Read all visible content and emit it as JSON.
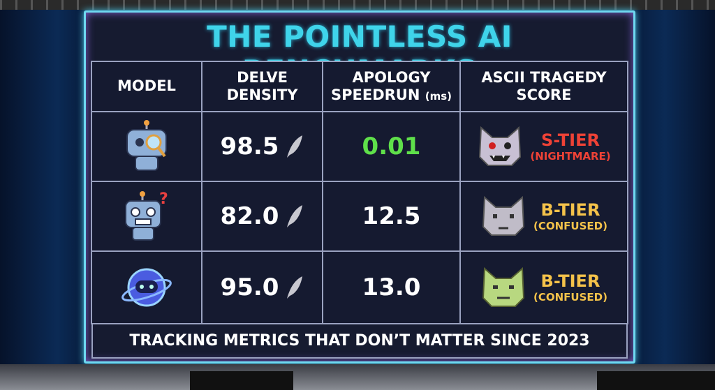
{
  "header": {
    "title": "THE POINTLESS AI BENCHMARKS"
  },
  "table": {
    "columns": [
      {
        "text": "MODEL"
      },
      {
        "text": "DELVE DENSITY"
      },
      {
        "text": "APOLOGY SPEEDRUN",
        "unit": "(ms)"
      },
      {
        "text": "ASCII TRAGEDY SCORE"
      }
    ],
    "rows": [
      {
        "delve": "98.5",
        "apology": "0.01",
        "tier": "S-TIER",
        "tier_note": "(NIGHTMARE)"
      },
      {
        "delve": "82.0",
        "apology": "12.5",
        "tier": "B-TIER",
        "tier_note": "(CONFUSED)"
      },
      {
        "delve": "95.0",
        "apology": "13.0",
        "tier": "B-TIER",
        "tier_note": "(CONFUSED)"
      }
    ]
  },
  "footer": {
    "text": "TRACKING METRICS THAT DON’T MATTER SINCE 2023"
  }
}
